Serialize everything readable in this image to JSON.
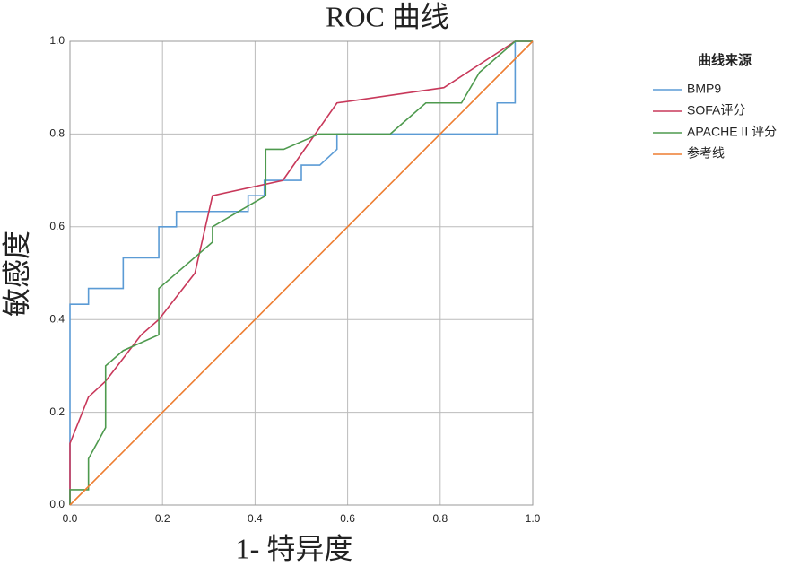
{
  "chart_data": {
    "type": "line",
    "title": "ROC 曲线",
    "x_label": "1- 特异度",
    "y_label": "敏感度",
    "legend_title": "曲线来源",
    "legend_position": "right",
    "grid": true,
    "xlim": [
      0,
      1
    ],
    "ylim": [
      0,
      1
    ],
    "xticks": [
      {
        "value": 0,
        "label": "0.0"
      },
      0.2,
      0.4,
      0.6,
      0.8,
      {
        "value": 1,
        "label": "1.0"
      }
    ],
    "yticks": [
      {
        "value": 0,
        "label": "0.0"
      },
      0.2,
      0.4,
      0.6,
      0.8,
      {
        "value": 1,
        "label": "1.0"
      }
    ],
    "series": [
      {
        "name": "BMP9",
        "color": "#5b9bd5",
        "x": [
          0,
          0,
          0.04,
          0.04,
          0.115,
          0.115,
          0.192,
          0.192,
          0.23,
          0.23,
          0.385,
          0.385,
          0.42,
          0.42,
          0.5,
          0.5,
          0.54,
          0.577,
          0.577,
          0.923,
          0.923,
          0.962,
          0.962,
          1
        ],
        "values": [
          0,
          0.433,
          0.433,
          0.467,
          0.467,
          0.533,
          0.533,
          0.6,
          0.6,
          0.633,
          0.633,
          0.667,
          0.667,
          0.7,
          0.7,
          0.733,
          0.733,
          0.767,
          0.8,
          0.8,
          0.867,
          0.867,
          1,
          1
        ]
      },
      {
        "name": "SOFA评分",
        "color": "#c8385a",
        "x": [
          0,
          0,
          0.04,
          0.077,
          0.154,
          0.192,
          0.27,
          0.308,
          0.46,
          0.577,
          0.808,
          0.962,
          1
        ],
        "values": [
          0,
          0.133,
          0.233,
          0.267,
          0.367,
          0.4,
          0.5,
          0.667,
          0.7,
          0.867,
          0.9,
          1,
          1
        ]
      },
      {
        "name": "APACHE II 评分",
        "color": "#4e9a4e",
        "x": [
          0,
          0,
          0.04,
          0.04,
          0.077,
          0.077,
          0.115,
          0.192,
          0.192,
          0.308,
          0.308,
          0.423,
          0.423,
          0.462,
          0.538,
          0.692,
          0.769,
          0.846,
          0.885,
          0.962,
          1
        ],
        "values": [
          0,
          0.033,
          0.033,
          0.1,
          0.167,
          0.3,
          0.333,
          0.367,
          0.467,
          0.567,
          0.6,
          0.667,
          0.767,
          0.767,
          0.8,
          0.8,
          0.867,
          0.867,
          0.933,
          1,
          1
        ]
      },
      {
        "name": "参考线",
        "color": "#ed7d31",
        "x": [
          0,
          1
        ],
        "values": [
          0,
          1
        ]
      }
    ]
  }
}
